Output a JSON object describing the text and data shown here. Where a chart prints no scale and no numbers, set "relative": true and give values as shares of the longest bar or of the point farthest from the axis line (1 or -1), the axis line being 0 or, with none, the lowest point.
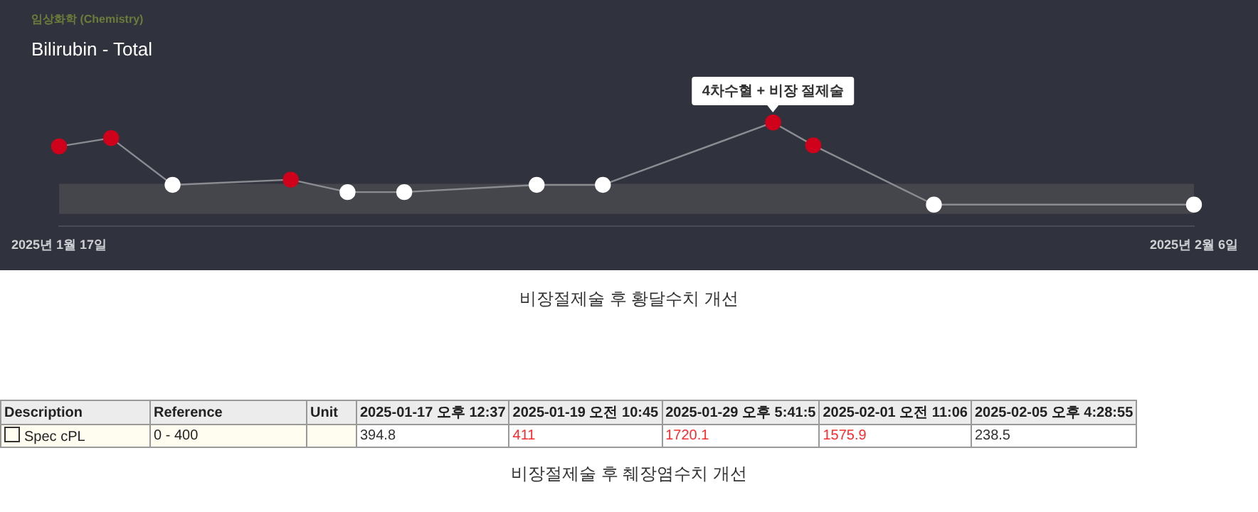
{
  "chart_data": [
    {
      "type": "line",
      "title": "Bilirubin - Total",
      "subtitle": "임상화학 (Chemistry)",
      "relative": true,
      "x": [
        "2025-01-17",
        "2025-01-17T22:00",
        "2025-01-19",
        "2025-01-21T02:00",
        "2025-01-22T02:00",
        "2025-01-23T02:00",
        "2025-01-25T10:00",
        "2025-01-26T14:00",
        "2025-01-29T14:00",
        "2025-01-30T07:00",
        "2025-02-01T10:00",
        "2025-02-06"
      ],
      "series": [
        {
          "color": "#8a8c91",
          "colors": [
            "#d0021b",
            "#d0021b",
            "#ffffff",
            "#d0021b",
            "#ffffff",
            "#ffffff",
            "#ffffff",
            "#ffffff",
            "#d0021b",
            "#d0021b",
            "#ffffff",
            "#ffffff"
          ],
          "values": [
            0.77,
            0.85,
            0.4,
            0.45,
            0.33,
            0.33,
            0.4,
            0.4,
            1,
            0.78,
            0.21,
            0.21
          ]
        }
      ],
      "xlim": [
        "2025-01-17",
        "2025-02-06"
      ],
      "xticks": [
        {
          "value": "2025-01-17",
          "label": "2025년 1월 17일"
        },
        {
          "value": "2025-02-06",
          "label": "2025년 2월 6일"
        }
      ],
      "bands": [
        {
          "axis": "y",
          "from": 0.12,
          "to": 0.41,
          "color": "#45464b"
        }
      ],
      "marker": "circle",
      "grid": false,
      "legend": false,
      "annotations": [
        {
          "text": "4차수혈 + 비장 절제술",
          "x": "2025-01-29T14:00",
          "y": 1
        },
        "비장절제술 후 황달수치 개선"
      ]
    },
    {
      "type": "other",
      "categories": [
        "2025-01-17 오후 12:37",
        "2025-01-19 오전 10:45",
        "2025-01-29 오후 5:41:5",
        "2025-02-01 오전 11:06",
        "2025-02-05 오후 4:28:55"
      ],
      "series": [
        {
          "name": "Spec cPL",
          "colors": [
            "#333333",
            "#ff2a2a",
            "#ff2a2a",
            "#ff2a2a",
            "#333333"
          ],
          "values": [
            394.8,
            411,
            1720.1,
            1575.9,
            238.5
          ]
        }
      ],
      "data_labels": true,
      "annotations": [
        "Description",
        "Reference",
        "Unit",
        "0 - 400",
        "비장절제술 후 췌장염수치 개선"
      ]
    }
  ]
}
